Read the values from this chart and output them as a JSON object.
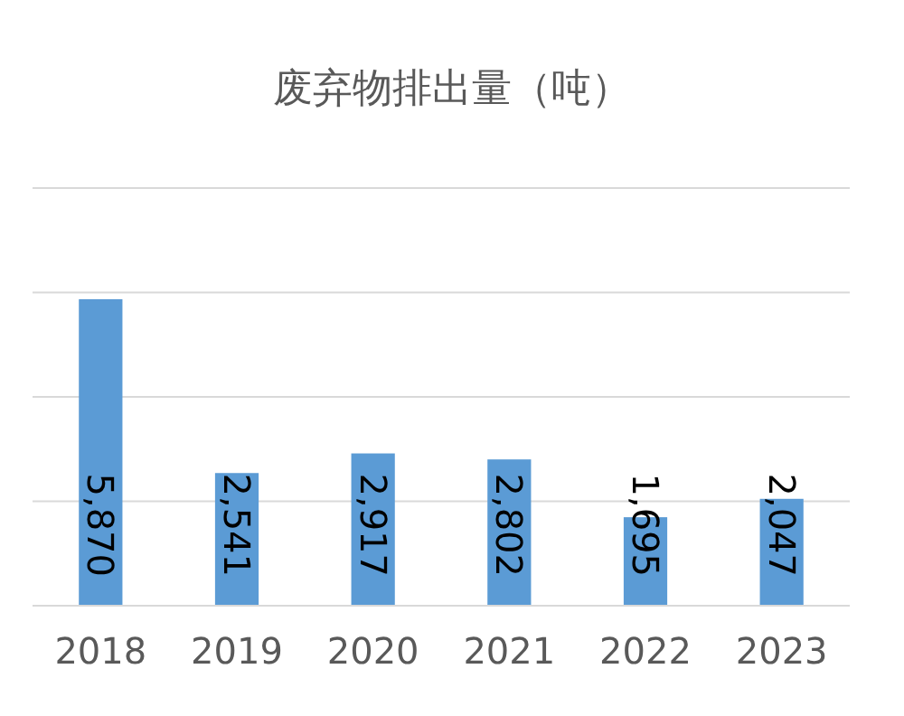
{
  "chart_data": {
    "type": "bar",
    "title": "废弃物排出量（吨）",
    "categories": [
      "2018",
      "2019",
      "2020",
      "2021",
      "2022",
      "2023"
    ],
    "values": [
      5870,
      2541,
      2917,
      2802,
      1695,
      2047
    ],
    "value_labels": [
      "5,870",
      "2,541",
      "2,917",
      "2,802",
      "1,695",
      "2,047"
    ],
    "color": "#5b9bd5",
    "ylim": [
      0,
      8000
    ],
    "yticks": [
      {
        "value": 0,
        "label": null
      },
      {
        "value": 2000,
        "label": null
      },
      {
        "value": 4000,
        "label": null
      },
      {
        "value": 6000,
        "label": null
      },
      {
        "value": 8000,
        "label": null
      }
    ],
    "tick_labels": "x",
    "grid": "y"
  }
}
